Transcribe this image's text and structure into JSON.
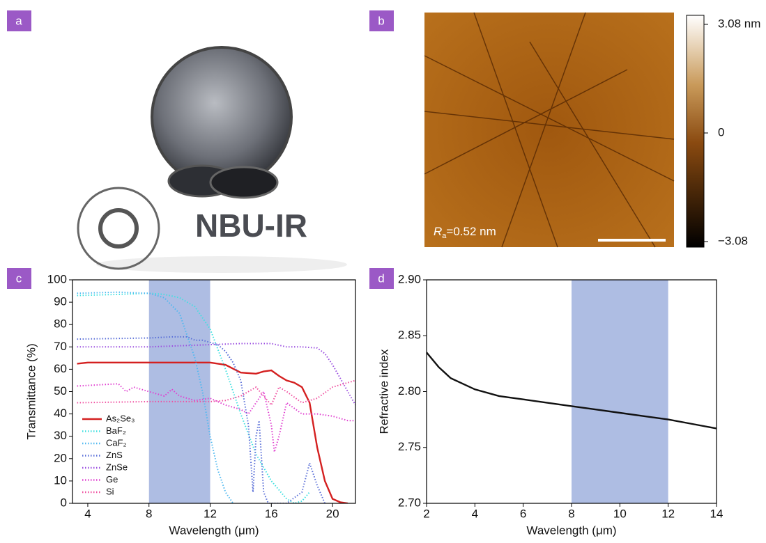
{
  "photos": [
    {
      "label": "a",
      "photo_text": "NBU-IR"
    },
    {
      "label": "b",
      "annotation": {
        "symbol": "R",
        "subscript": "a",
        "text": "=0.52 nm"
      },
      "colorbar": {
        "lim": [
          -3.08,
          3.08
        ],
        "ticks": [
          {
            "value": 3.08,
            "label": "3.08 nm"
          },
          0,
          {
            "value": -3.08,
            "label": "−3.08"
          }
        ]
      }
    }
  ],
  "chart_data": [
    {
      "type": "line",
      "panel_label": "c",
      "x_label": "Wavelength (μm)",
      "y_label": "Transmittance (%)",
      "xlim": [
        3,
        21.5
      ],
      "ylim": [
        0,
        100
      ],
      "xticks": [
        4,
        8,
        12,
        16,
        20
      ],
      "yticks": [
        0,
        10,
        20,
        30,
        40,
        50,
        60,
        70,
        80,
        90,
        100
      ],
      "highlight": [
        8,
        12
      ],
      "highlight_color": "#aebde3",
      "legend": "lower-left",
      "series": [
        {
          "name": "As₂Se₃",
          "color": "#d42020",
          "style": "solid",
          "x": [
            3.3,
            4,
            8,
            12,
            13,
            14,
            15,
            15.5,
            16,
            16.5,
            17,
            17.5,
            18,
            18.5,
            19,
            19.5,
            20,
            20.5,
            21
          ],
          "values": [
            62.5,
            63,
            63,
            63,
            62,
            58.5,
            58,
            59,
            59.5,
            57,
            55,
            54,
            52,
            45,
            25,
            10,
            2,
            0.5,
            0
          ]
        },
        {
          "name": "BaF₂",
          "color": "#40e0e0",
          "style": "dotted",
          "x": [
            3.3,
            6,
            8,
            9,
            10,
            11,
            12,
            13,
            14,
            15,
            16,
            17,
            17.5,
            18,
            18.5
          ],
          "values": [
            93,
            93.5,
            94,
            93.5,
            92,
            88,
            78,
            60,
            40,
            22,
            10,
            2,
            0,
            1,
            5
          ]
        },
        {
          "name": "CaF₂",
          "color": "#4fb8f0",
          "style": "dotted",
          "x": [
            3.3,
            6,
            8,
            9,
            10,
            11,
            11.5,
            12,
            12.5,
            13,
            13.5
          ],
          "values": [
            94,
            94.5,
            94,
            92,
            85,
            65,
            50,
            30,
            15,
            5,
            0
          ]
        },
        {
          "name": "ZnS",
          "color": "#5a6fd8",
          "style": "dotted",
          "x": [
            3.3,
            8,
            9.5,
            10.5,
            11,
            11.5,
            12,
            12.5,
            13,
            13.5,
            14,
            14.5,
            14.8,
            15,
            15.2,
            15.5,
            15.8,
            17,
            18,
            18.5,
            19,
            19.5
          ],
          "values": [
            73.5,
            74,
            74.5,
            74.5,
            73,
            73,
            72,
            71,
            68,
            63,
            55,
            35,
            5,
            30,
            37,
            5,
            0,
            0,
            5,
            18,
            8,
            0
          ]
        },
        {
          "name": "ZnSe",
          "color": "#9b4fe0",
          "style": "dotted",
          "x": [
            3.3,
            8,
            12,
            14,
            16,
            17,
            18,
            19,
            19.5,
            20,
            20.5,
            21,
            21.5
          ],
          "values": [
            70,
            70,
            71,
            71.5,
            71.5,
            70,
            70,
            69.5,
            67,
            62,
            56,
            50,
            44
          ]
        },
        {
          "name": "Ge",
          "color": "#e040d0",
          "style": "dotted",
          "x": [
            3.3,
            6,
            6.5,
            7,
            8,
            9,
            9.5,
            10,
            11,
            12,
            13,
            14,
            14.5,
            15,
            15.5,
            16,
            16.2,
            16.5,
            17,
            18,
            19,
            20,
            21,
            21.5
          ],
          "values": [
            52.5,
            53.5,
            50,
            52,
            50,
            48,
            51,
            48,
            46,
            47,
            44,
            42,
            40,
            45,
            50,
            35,
            23,
            30,
            45,
            40,
            40,
            39,
            37,
            37
          ]
        },
        {
          "name": "Si",
          "color": "#f050a0",
          "style": "dotted",
          "x": [
            3.3,
            8,
            12,
            13,
            14,
            15,
            15.5,
            16,
            16.5,
            17,
            18,
            19,
            20,
            21,
            21.5
          ],
          "values": [
            45,
            45.5,
            45.5,
            46,
            48,
            52,
            48,
            44,
            52,
            50,
            45,
            47,
            52,
            54,
            55
          ]
        }
      ]
    },
    {
      "type": "line",
      "panel_label": "d",
      "x_label": "Wavelength (μm)",
      "y_label": "Refractive index",
      "xlim": [
        2,
        14
      ],
      "ylim": [
        2.7,
        2.9
      ],
      "xticks": [
        2,
        4,
        6,
        8,
        10,
        12,
        14
      ],
      "yticks": [
        {
          "value": 2.7,
          "label": "2.70"
        },
        2.75,
        {
          "value": 2.8,
          "label": "2.80"
        },
        2.85,
        {
          "value": 2.9,
          "label": "2.90"
        }
      ],
      "highlight": [
        8,
        12
      ],
      "highlight_color": "#aebde3",
      "series": [
        {
          "color": "#111111",
          "style": "solid",
          "x": [
            2,
            2.5,
            3,
            4,
            5,
            6,
            7,
            8,
            9,
            10,
            11,
            12,
            13,
            14
          ],
          "values": [
            2.835,
            2.822,
            2.812,
            2.802,
            2.796,
            2.793,
            2.79,
            2.787,
            2.784,
            2.781,
            2.778,
            2.775,
            2.771,
            2.767
          ]
        }
      ]
    }
  ]
}
